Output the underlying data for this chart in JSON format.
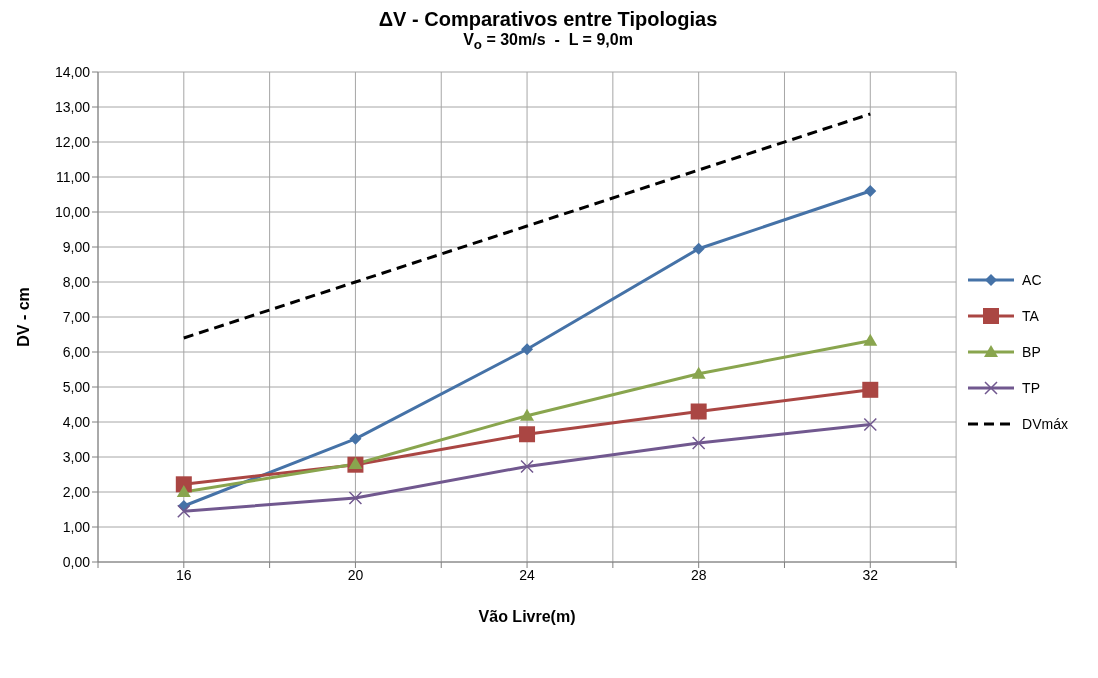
{
  "chart_data": {
    "type": "line",
    "title": "ΔV - Comparativos entre Tipologias",
    "subtitle": "V$_{o}$ = 30m/s  -  L = 9,0m",
    "xlabel": "Vão Livre(m)",
    "ylabel": "DV - cm",
    "x": [
      16,
      20,
      24,
      28,
      32
    ],
    "xlim": [
      14,
      34
    ],
    "xticks": [
      {
        "value": 14,
        "label": null
      },
      16,
      {
        "value": 18,
        "label": null
      },
      20,
      {
        "value": 22,
        "label": null
      },
      24,
      {
        "value": 26,
        "label": null
      },
      28,
      {
        "value": 30,
        "label": null
      },
      32,
      {
        "value": 34,
        "label": null
      }
    ],
    "ylim": [
      0,
      14
    ],
    "yticks": [
      {
        "value": 0,
        "label": "0,00"
      },
      {
        "value": 1,
        "label": "1,00"
      },
      {
        "value": 2,
        "label": "2,00"
      },
      {
        "value": 3,
        "label": "3,00"
      },
      {
        "value": 4,
        "label": "4,00"
      },
      {
        "value": 5,
        "label": "5,00"
      },
      {
        "value": 6,
        "label": "6,00"
      },
      {
        "value": 7,
        "label": "7,00"
      },
      {
        "value": 8,
        "label": "8,00"
      },
      {
        "value": 9,
        "label": "9,00"
      },
      {
        "value": 10,
        "label": "10,00"
      },
      {
        "value": 11,
        "label": "11,00"
      },
      {
        "value": 12,
        "label": "12,00"
      },
      {
        "value": 13,
        "label": "13,00"
      },
      {
        "value": 14,
        "label": "14,00"
      }
    ],
    "grid": true,
    "legend": "right",
    "series": [
      {
        "name": "AC",
        "color": "#4572a7",
        "marker": "diamond",
        "line_style": "solid",
        "values": [
          1.6,
          3.52,
          6.08,
          8.95,
          10.6
        ]
      },
      {
        "name": "TA",
        "color": "#aa4643",
        "marker": "square",
        "line_style": "solid",
        "values": [
          2.22,
          2.78,
          3.65,
          4.3,
          4.92
        ]
      },
      {
        "name": "BP",
        "color": "#89a54e",
        "marker": "triangle",
        "line_style": "solid",
        "values": [
          2.0,
          2.8,
          4.18,
          5.38,
          6.32
        ]
      },
      {
        "name": "TP",
        "color": "#71588f",
        "marker": "cross",
        "line_style": "solid",
        "values": [
          1.45,
          1.83,
          2.73,
          3.4,
          3.93
        ]
      },
      {
        "name": "DVmáx",
        "color": "#000000",
        "marker": "none",
        "line_style": "dashed",
        "values": [
          6.4,
          8.0,
          9.6,
          11.2,
          12.8
        ]
      }
    ]
  }
}
